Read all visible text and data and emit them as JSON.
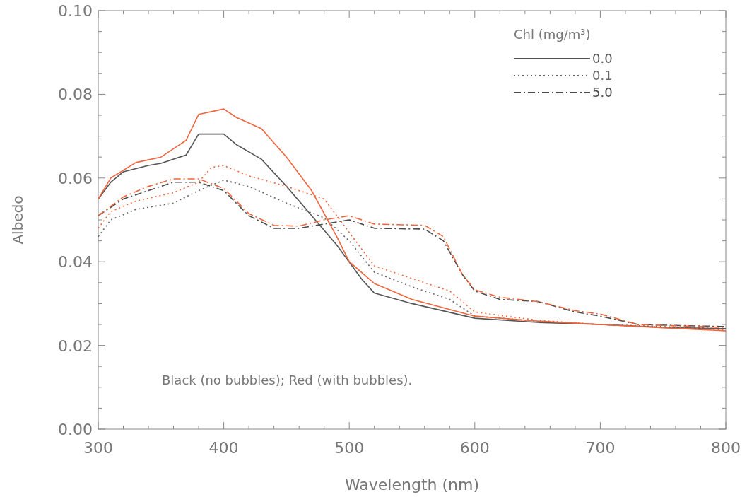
{
  "chart_data": {
    "type": "line",
    "xlabel": "Wavelength (nm)",
    "ylabel": "Albedo",
    "legend_title": "Chl (mg/m³)",
    "legend": "top right",
    "grid": false,
    "marker": "none",
    "xlim": [
      300,
      800
    ],
    "xticks": [
      300,
      {
        "value": 320,
        "label": null
      },
      {
        "value": 340,
        "label": null
      },
      {
        "value": 360,
        "label": null
      },
      {
        "value": 380,
        "label": null
      },
      400,
      {
        "value": 420,
        "label": null
      },
      {
        "value": 440,
        "label": null
      },
      {
        "value": 460,
        "label": null
      },
      {
        "value": 480,
        "label": null
      },
      500,
      {
        "value": 520,
        "label": null
      },
      {
        "value": 540,
        "label": null
      },
      {
        "value": 560,
        "label": null
      },
      {
        "value": 580,
        "label": null
      },
      600,
      {
        "value": 620,
        "label": null
      },
      {
        "value": 640,
        "label": null
      },
      {
        "value": 660,
        "label": null
      },
      {
        "value": 680,
        "label": null
      },
      700,
      {
        "value": 720,
        "label": null
      },
      {
        "value": 740,
        "label": null
      },
      {
        "value": 760,
        "label": null
      },
      {
        "value": 780,
        "label": null
      },
      800
    ],
    "ylim": [
      0,
      0.1
    ],
    "yticks": [
      {
        "value": 0,
        "label": "0.00"
      },
      {
        "value": 0.005,
        "label": null
      },
      {
        "value": 0.01,
        "label": null
      },
      {
        "value": 0.015,
        "label": null
      },
      {
        "value": 0.02,
        "label": "0.02"
      },
      {
        "value": 0.025,
        "label": null
      },
      {
        "value": 0.03,
        "label": null
      },
      {
        "value": 0.035,
        "label": null
      },
      {
        "value": 0.04,
        "label": "0.04"
      },
      {
        "value": 0.045,
        "label": null
      },
      {
        "value": 0.05,
        "label": null
      },
      {
        "value": 0.055,
        "label": null
      },
      {
        "value": 0.06,
        "label": "0.06"
      },
      {
        "value": 0.065,
        "label": null
      },
      {
        "value": 0.07,
        "label": null
      },
      {
        "value": 0.075,
        "label": null
      },
      {
        "value": 0.08,
        "label": "0.08"
      },
      {
        "value": 0.085,
        "label": null
      },
      {
        "value": 0.09,
        "label": null
      },
      {
        "value": 0.095,
        "label": null
      },
      {
        "value": 0.1,
        "label": "0.10"
      }
    ],
    "annotations": [
      "Black (no bubbles); Red (with bubbles)."
    ],
    "series": [
      {
        "name": "0.0",
        "color": "#555555",
        "line_style": "solid",
        "x": [
          300,
          310,
          320,
          340,
          350,
          370,
          380,
          400,
          410,
          430,
          450,
          470,
          490,
          510,
          520,
          550,
          600,
          650,
          700,
          750,
          800
        ],
        "values": [
          0.055,
          0.059,
          0.0615,
          0.063,
          0.0635,
          0.0655,
          0.0705,
          0.0705,
          0.068,
          0.0645,
          0.058,
          0.051,
          0.044,
          0.0358,
          0.0325,
          0.03,
          0.0265,
          0.0255,
          0.025,
          0.0243,
          0.024
        ]
      },
      {
        "name": "0.1",
        "color": "#666666",
        "line_style": "dotted",
        "x": [
          300,
          310,
          330,
          360,
          380,
          400,
          420,
          450,
          480,
          500,
          520,
          550,
          580,
          600,
          650,
          700,
          800
        ],
        "values": [
          0.046,
          0.05,
          0.0525,
          0.054,
          0.057,
          0.0595,
          0.058,
          0.054,
          0.0505,
          0.045,
          0.0375,
          0.034,
          0.031,
          0.027,
          0.0258,
          0.025,
          0.024
        ]
      },
      {
        "name": "5.0",
        "color": "#4a4a4a",
        "line_style": "dashdot",
        "x": [
          300,
          320,
          340,
          360,
          380,
          400,
          420,
          440,
          460,
          480,
          500,
          520,
          560,
          575,
          590,
          600,
          620,
          650,
          680,
          700,
          730,
          800
        ],
        "values": [
          0.051,
          0.055,
          0.057,
          0.059,
          0.059,
          0.057,
          0.051,
          0.048,
          0.048,
          0.049,
          0.05,
          0.048,
          0.0478,
          0.045,
          0.037,
          0.033,
          0.031,
          0.0305,
          0.028,
          0.027,
          0.025,
          0.0245
        ]
      },
      {
        "color": "#f0643c",
        "line_style": "solid",
        "x": [
          300,
          310,
          330,
          350,
          370,
          380,
          400,
          410,
          430,
          450,
          470,
          490,
          500,
          520,
          550,
          600,
          650,
          700,
          750,
          800
        ],
        "values": [
          0.055,
          0.06,
          0.0637,
          0.065,
          0.069,
          0.0752,
          0.0765,
          0.0745,
          0.0718,
          0.065,
          0.057,
          0.046,
          0.04,
          0.0348,
          0.031,
          0.027,
          0.0258,
          0.025,
          0.0242,
          0.0235
        ]
      },
      {
        "color": "#f0643c",
        "line_style": "dotted",
        "x": [
          300,
          310,
          330,
          360,
          380,
          390,
          400,
          420,
          450,
          480,
          500,
          520,
          550,
          580,
          600,
          650,
          700,
          800
        ],
        "values": [
          0.048,
          0.052,
          0.0545,
          0.0565,
          0.059,
          0.0625,
          0.063,
          0.0605,
          0.058,
          0.055,
          0.047,
          0.039,
          0.036,
          0.033,
          0.028,
          0.026,
          0.025,
          0.0237
        ]
      },
      {
        "color": "#f0643c",
        "line_style": "dashdot",
        "x": [
          300,
          320,
          340,
          360,
          380,
          400,
          420,
          440,
          460,
          480,
          500,
          520,
          560,
          575,
          590,
          600,
          620,
          650,
          680,
          700,
          730,
          800
        ],
        "values": [
          0.051,
          0.0555,
          0.058,
          0.0598,
          0.0598,
          0.0575,
          0.0515,
          0.0487,
          0.0485,
          0.05,
          0.051,
          0.049,
          0.0487,
          0.046,
          0.037,
          0.0333,
          0.0315,
          0.0305,
          0.0283,
          0.0275,
          0.025,
          0.0243
        ]
      }
    ]
  }
}
